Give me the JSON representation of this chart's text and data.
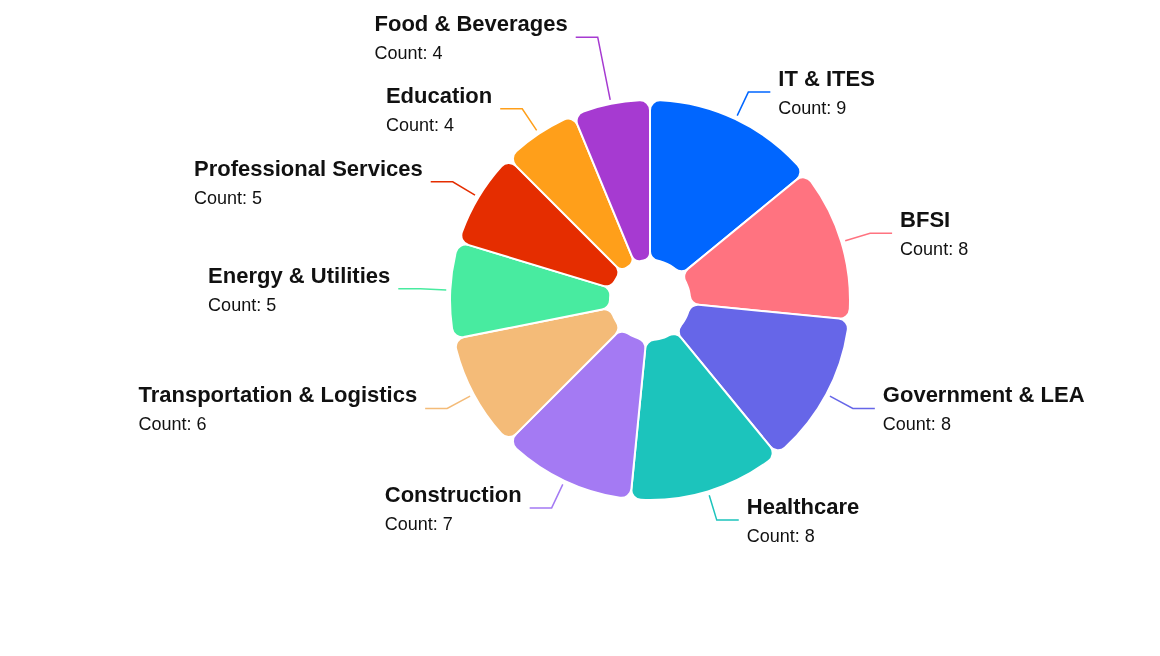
{
  "chart_data": {
    "type": "donut",
    "categories": [
      "IT & ITES",
      "BFSI",
      "Government & LEA",
      "Healthcare",
      "Construction",
      "Transportation & Logistics",
      "Energy & Utilities",
      "Professional Services",
      "Education",
      "Food & Beverages"
    ],
    "values": [
      9,
      8,
      8,
      8,
      7,
      6,
      5,
      5,
      4,
      4
    ],
    "colors": [
      "#0066ff",
      "#ff7380",
      "#6666e8",
      "#1cc4bc",
      "#a47af3",
      "#f4bb78",
      "#48eba0",
      "#e52d00",
      "#ff9f1a",
      "#a63ad1"
    ],
    "value_labels": [
      "Count: 9",
      "Count: 8",
      "Count: 8",
      "Count: 8",
      "Count: 7",
      "Count: 6",
      "Count: 5",
      "Count: 5",
      "Count: 4",
      "Count: 4"
    ]
  }
}
